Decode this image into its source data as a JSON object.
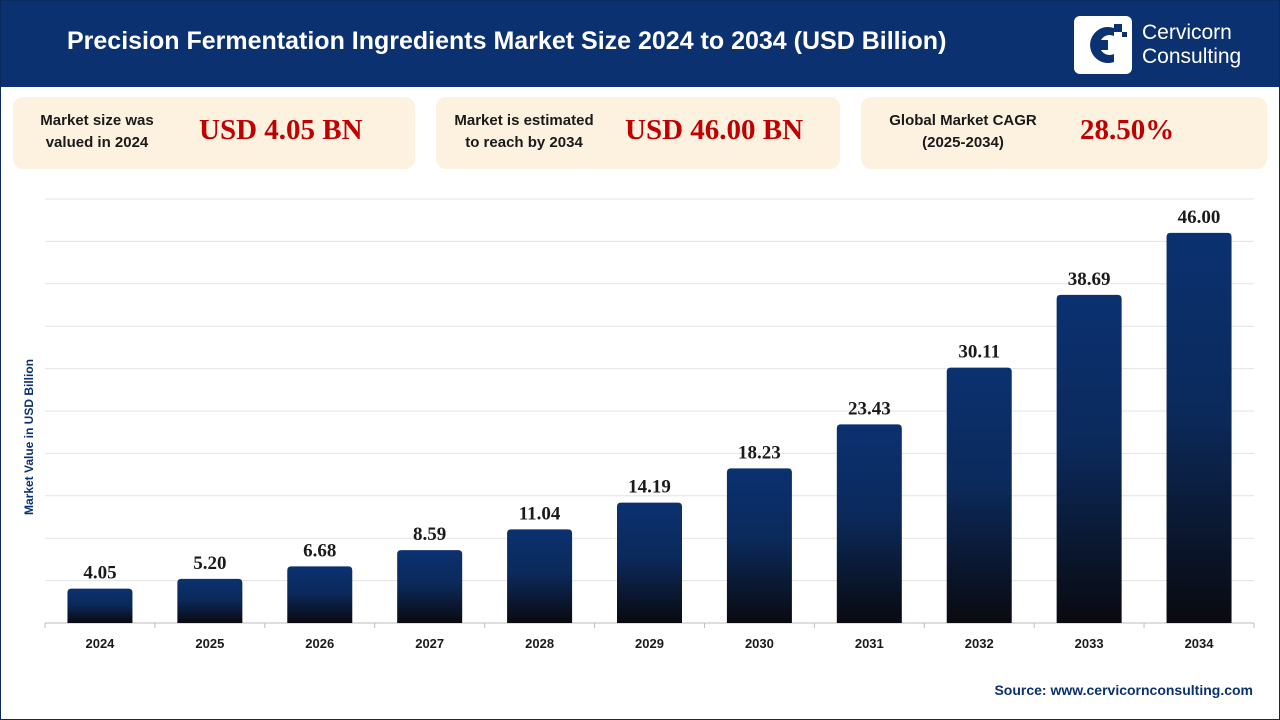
{
  "header": {
    "title": "Precision Fermentation Ingredients Market Size 2024 to 2034 (USD Billion)",
    "brand_line1": "Cervicorn",
    "brand_line2": "Consulting",
    "logo_icon": "cervicorn-logo-icon",
    "background_color": "#0b3170"
  },
  "cards": [
    {
      "label_line1": "Market size was",
      "label_line2": "valued in 2024",
      "value": "USD 4.05 BN"
    },
    {
      "label_line1": "Market is estimated",
      "label_line2": "to reach by 2034",
      "value": "USD 46.00 BN"
    },
    {
      "label_line1": "Global Market CAGR",
      "label_line2": "(2025-2034)",
      "value": "28.50%"
    }
  ],
  "source": "Source: www.cervicornconsulting.com",
  "chart_data": {
    "type": "bar",
    "title": "Precision Fermentation Ingredients Market Size 2024 to 2034 (USD Billion)",
    "ylabel": "Market Value in USD Billion",
    "xlabel": "",
    "categories": [
      "2024",
      "2025",
      "2026",
      "2027",
      "2028",
      "2029",
      "2030",
      "2031",
      "2032",
      "2033",
      "2034"
    ],
    "values": [
      4.05,
      5.2,
      6.68,
      8.59,
      11.04,
      14.19,
      18.23,
      23.43,
      30.11,
      38.69,
      46.0
    ],
    "value_labels": [
      "4.05",
      "5.20",
      "6.68",
      "8.59",
      "11.04",
      "14.19",
      "18.23",
      "23.43",
      "30.11",
      "38.69",
      "46.00"
    ],
    "ylim": [
      0,
      50
    ],
    "grid": true,
    "legend": "none",
    "bar_color_top": "#0b3170",
    "bar_color_bottom": "#0a0a10",
    "value_color": "#1a1a1a"
  }
}
